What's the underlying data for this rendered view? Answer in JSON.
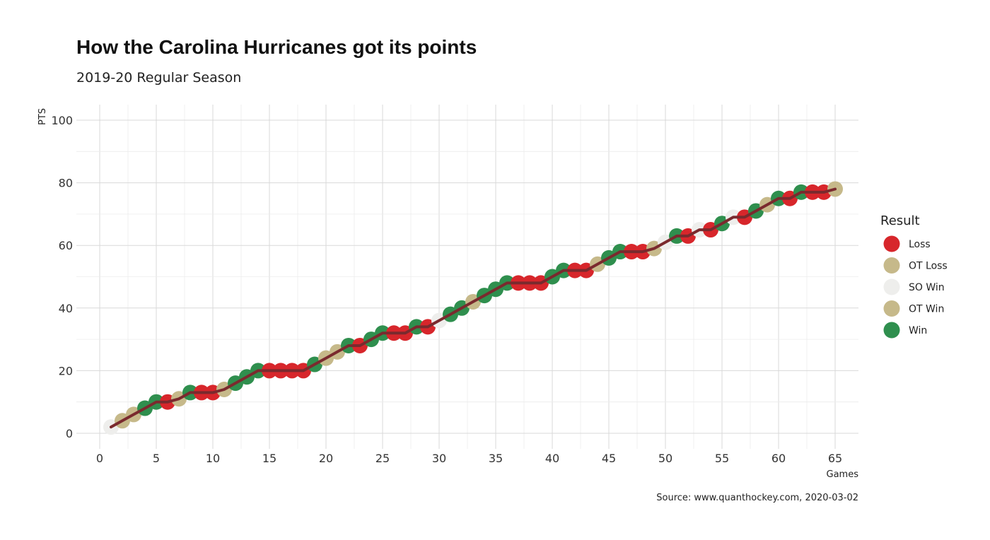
{
  "chart_data": {
    "type": "scatter",
    "title": "How the Carolina Hurricanes got its points",
    "subtitle": "2019-20 Regular Season",
    "xlabel": "Games",
    "ylabel": "PTS",
    "caption": "Source: www.quanthockey.com, 2020-03-02",
    "xlim": [
      0,
      67
    ],
    "ylim": [
      0,
      105
    ],
    "x_ticks": [
      0,
      5,
      10,
      15,
      20,
      25,
      30,
      35,
      40,
      45,
      50,
      55,
      60,
      65
    ],
    "y_ticks": [
      0,
      20,
      40,
      60,
      80,
      100
    ],
    "grid": true,
    "legend": {
      "title": "Result",
      "position": "right",
      "entries": [
        {
          "label": "Loss",
          "color": "#d7262b"
        },
        {
          "label": "OT Loss",
          "color": "#c6b98a"
        },
        {
          "label": "SO Win",
          "color": "#eeeeec"
        },
        {
          "label": "OT Win",
          "color": "#c6b98a"
        },
        {
          "label": "Win",
          "color": "#2f8f4e"
        }
      ]
    },
    "colors": {
      "Loss": "#d7262b",
      "OT Loss": "#c6b98a",
      "SO Win": "#eeeeec",
      "OT Win": "#c6b98a",
      "Win": "#2f8f4e",
      "line": "#7a2a2e"
    },
    "results": [
      "SO Win",
      "OT Win",
      "OT Win",
      "Win",
      "Win",
      "Loss",
      "OT Loss",
      "Win",
      "Loss",
      "Loss",
      "OT Loss",
      "Win",
      "Win",
      "Win",
      "Loss",
      "Loss",
      "Loss",
      "Loss",
      "Win",
      "OT Win",
      "OT Win",
      "Win",
      "Loss",
      "Win",
      "Win",
      "Loss",
      "Loss",
      "Win",
      "Loss",
      "SO Win",
      "Win",
      "Win",
      "OT Win",
      "Win",
      "Win",
      "Win",
      "Loss",
      "Loss",
      "Loss",
      "Win",
      "Win",
      "Loss",
      "Loss",
      "OT Win",
      "Win",
      "Win",
      "Loss",
      "Loss",
      "OT Loss",
      "SO Win",
      "Win",
      "Loss",
      "SO Win",
      "Loss",
      "Win",
      "SO Win",
      "Loss",
      "Win",
      "OT Win",
      "Win",
      "Loss",
      "Win",
      "Loss",
      "Loss",
      "OT Loss"
    ],
    "x": [
      1,
      2,
      3,
      4,
      5,
      6,
      7,
      8,
      9,
      10,
      11,
      12,
      13,
      14,
      15,
      16,
      17,
      18,
      19,
      20,
      21,
      22,
      23,
      24,
      25,
      26,
      27,
      28,
      29,
      30,
      31,
      32,
      33,
      34,
      35,
      36,
      37,
      38,
      39,
      40,
      41,
      42,
      43,
      44,
      45,
      46,
      47,
      48,
      49,
      50,
      51,
      52,
      53,
      54,
      55,
      56,
      57,
      58,
      59,
      60,
      61,
      62,
      63,
      64,
      65
    ],
    "points": [
      2,
      4,
      6,
      8,
      10,
      10,
      11,
      13,
      13,
      13,
      14,
      16,
      18,
      20,
      20,
      20,
      20,
      20,
      22,
      24,
      26,
      28,
      28,
      30,
      32,
      32,
      32,
      34,
      34,
      36,
      38,
      40,
      42,
      44,
      46,
      48,
      48,
      48,
      48,
      50,
      52,
      52,
      52,
      54,
      56,
      58,
      58,
      58,
      59,
      61,
      63,
      63,
      65,
      65,
      67,
      69,
      69,
      71,
      73,
      75,
      75,
      77,
      77,
      77,
      78
    ]
  }
}
